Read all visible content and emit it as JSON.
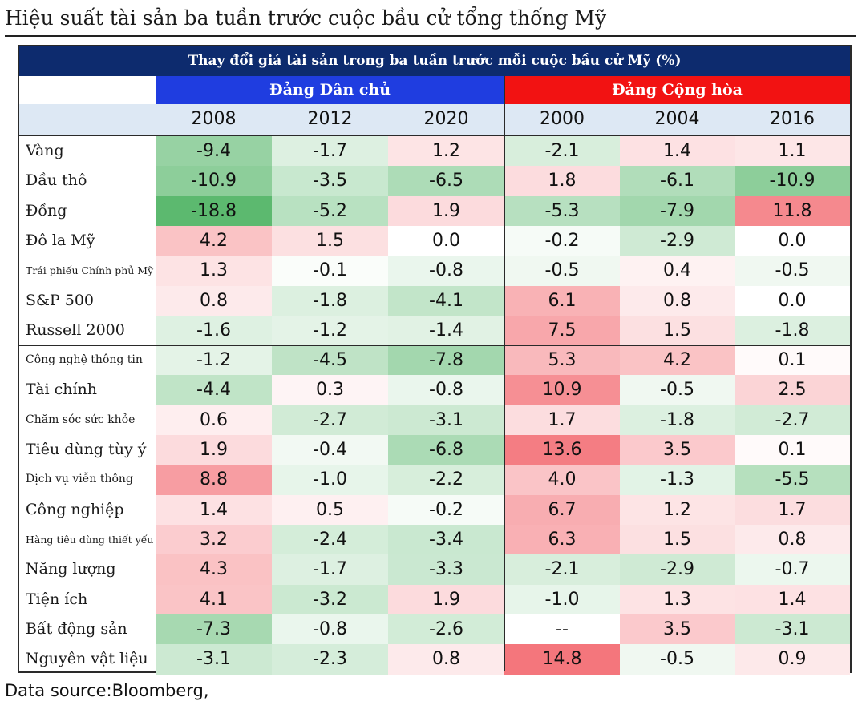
{
  "page_title": "Hiệu suất tài sản ba tuần trước cuộc bầu cử tổng thống Mỹ",
  "footnote": "Data source:Bloomberg,",
  "chart_data": {
    "type": "table",
    "title": "Thay đổi giá tài sản trong ba tuần trước mỗi cuộc bầu cử Mỹ (%)",
    "groups": [
      {
        "name": "Đảng Dân chủ",
        "years": [
          "2008",
          "2012",
          "2020"
        ],
        "color": "#1f3de0"
      },
      {
        "name": "Đảng Cộng hòa",
        "years": [
          "2000",
          "2004",
          "2016"
        ],
        "color": "#f21212"
      }
    ],
    "columns": [
      "2008",
      "2012",
      "2020",
      "2000",
      "2004",
      "2016"
    ],
    "rows": [
      {
        "label": "Vàng",
        "values": [
          "-9.4",
          "-1.7",
          "1.2",
          "-2.1",
          "1.4",
          "1.1"
        ]
      },
      {
        "label": "Dầu thô",
        "values": [
          "-10.9",
          "-3.5",
          "-6.5",
          "1.8",
          "-6.1",
          "-10.9"
        ]
      },
      {
        "label": "Đồng",
        "values": [
          "-18.8",
          "-5.2",
          "1.9",
          "-5.3",
          "-7.9",
          "11.8"
        ]
      },
      {
        "label": "Đô la Mỹ",
        "values": [
          "4.2",
          "1.5",
          "0.0",
          "-0.2",
          "-2.9",
          "0.0"
        ]
      },
      {
        "label": "Trái phiếu Chính phủ Mỹ",
        "values": [
          "1.3",
          "-0.1",
          "-0.8",
          "-0.5",
          "0.4",
          "-0.5"
        ]
      },
      {
        "label": "S&P 500",
        "values": [
          "0.8",
          "-1.8",
          "-4.1",
          "6.1",
          "0.8",
          "0.0"
        ]
      },
      {
        "label": "Russell 2000",
        "values": [
          "-1.6",
          "-1.2",
          "-1.4",
          "7.5",
          "1.5",
          "-1.8"
        ]
      },
      {
        "label": "Công nghệ thông tin",
        "values": [
          "-1.2",
          "-4.5",
          "-7.8",
          "5.3",
          "4.2",
          "0.1"
        ]
      },
      {
        "label": "Tài chính",
        "values": [
          "-4.4",
          "0.3",
          "-0.8",
          "10.9",
          "-0.5",
          "2.5"
        ]
      },
      {
        "label": "Chăm sóc sức khỏe",
        "values": [
          "0.6",
          "-2.7",
          "-3.1",
          "1.7",
          "-1.8",
          "-2.7"
        ]
      },
      {
        "label": "Tiêu dùng tùy ý",
        "values": [
          "1.9",
          "-0.4",
          "-6.8",
          "13.6",
          "3.5",
          "0.1"
        ]
      },
      {
        "label": "Dịch vụ viễn thông",
        "values": [
          "8.8",
          "-1.0",
          "-2.2",
          "4.0",
          "-1.3",
          "-5.5"
        ]
      },
      {
        "label": "Công nghiệp",
        "values": [
          "1.4",
          "0.5",
          "-0.2",
          "6.7",
          "1.2",
          "1.7"
        ]
      },
      {
        "label": "Hàng tiêu dùng thiết yếu",
        "values": [
          "3.2",
          "-2.4",
          "-3.4",
          "6.3",
          "1.5",
          "0.8"
        ]
      },
      {
        "label": "Năng lượng",
        "values": [
          "4.3",
          "-1.7",
          "-3.3",
          "-2.1",
          "-2.9",
          "-0.7"
        ]
      },
      {
        "label": "Tiện ích",
        "values": [
          "4.1",
          "-3.2",
          "1.9",
          "-1.0",
          "1.3",
          "1.4"
        ]
      },
      {
        "label": "Bất động sản",
        "values": [
          "-7.3",
          "-0.8",
          "-2.6",
          "--",
          "3.5",
          "-3.1"
        ]
      },
      {
        "label": "Nguyên vật liệu",
        "values": [
          "-3.1",
          "-2.3",
          "0.8",
          "14.8",
          "-0.5",
          "0.9"
        ]
      }
    ],
    "color_scale": {
      "negative": "#5cb96f",
      "positive": "#f25f66",
      "neutral": "#ffffff"
    }
  }
}
